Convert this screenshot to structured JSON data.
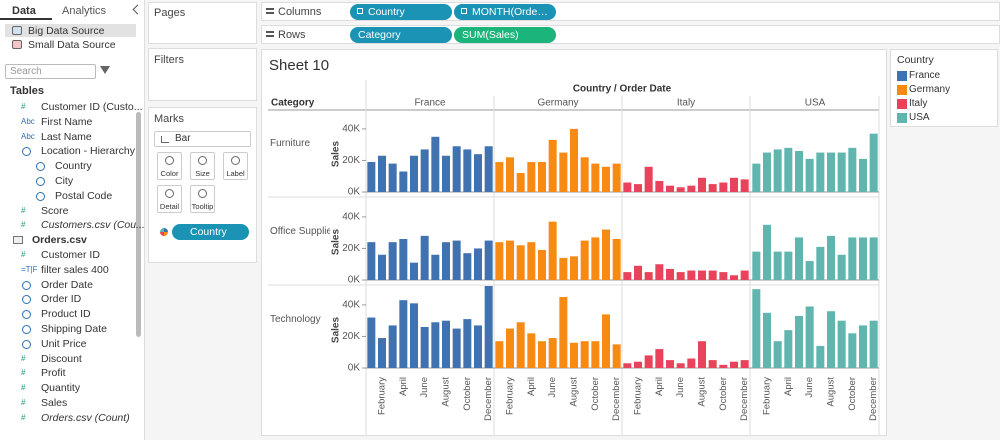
{
  "left_panel": {
    "tabs": [
      "Data",
      "Analytics"
    ],
    "sources": [
      "Big Data Source",
      "Small Data Source"
    ],
    "search": "Search",
    "tables_title": "Tables",
    "fields": [
      {
        "label": "Customer ID (Custo...",
        "icon": "#"
      },
      {
        "label": "First Name",
        "icon": "Abc"
      },
      {
        "label": "Last Name",
        "icon": "Abc"
      },
      {
        "label": "Location - Hierarchy"
      },
      {
        "label": "Country",
        "level": 1
      },
      {
        "label": "City",
        "level": 1
      },
      {
        "label": "Postal Code",
        "level": 1
      },
      {
        "label": "Score",
        "icon": "#"
      },
      {
        "label": "Customers.csv (Cou...",
        "icon": "#",
        "italic": true
      },
      {
        "label": "Orders.csv",
        "bold": true
      },
      {
        "label": "Customer ID",
        "icon": "#"
      },
      {
        "label": "filter sales 400",
        "icon": "=T|F"
      },
      {
        "label": "Order Date"
      },
      {
        "label": "Order ID"
      },
      {
        "label": "Product ID"
      },
      {
        "label": "Shipping Date"
      },
      {
        "label": "Unit Price"
      },
      {
        "label": "Discount",
        "icon": "#"
      },
      {
        "label": "Profit",
        "icon": "#"
      },
      {
        "label": "Quantity",
        "icon": "#"
      },
      {
        "label": "Sales",
        "icon": "#"
      },
      {
        "label": "Orders.csv (Count)",
        "icon": "#",
        "italic": true
      }
    ]
  },
  "cards": {
    "pages": "Pages",
    "filters": "Filters",
    "marks": "Marks",
    "mark_type": "Bar",
    "buttons": [
      "Color",
      "Size",
      "Label",
      "Detail",
      "Tooltip"
    ],
    "color_pill": "Country"
  },
  "shelves": {
    "columns": {
      "label": "Columns",
      "pills": [
        "Country",
        "MONTH(Order Date)"
      ]
    },
    "rows": {
      "label": "Rows",
      "pills": [
        "Category",
        "SUM(Sales)"
      ]
    }
  },
  "legend_title": "Country",
  "chart_data": {
    "type": "bar",
    "title": "Sheet 10",
    "column_title": "Country / Order Date",
    "row_header": "Category",
    "y_label": "Sales",
    "row_categories": [
      "Furniture",
      "Office Supplies",
      "Technology"
    ],
    "categories": [
      null,
      "February",
      null,
      "April",
      null,
      "June",
      null,
      "August",
      null,
      "October",
      null,
      "December"
    ],
    "ylim": [
      0,
      52000
    ],
    "yticks": [
      {
        "value": 0,
        "label": "0K"
      },
      {
        "value": 20000,
        "label": "20K"
      },
      {
        "value": 40000,
        "label": "40K"
      }
    ],
    "series": [
      {
        "name": "France",
        "color": "#3f72af",
        "values": [
          [
            19000,
            23000,
            18000,
            13000,
            23000,
            27000,
            35000,
            23000,
            29000,
            27000,
            24000,
            29000
          ],
          [
            24000,
            16000,
            24000,
            26000,
            11000,
            28000,
            16000,
            24000,
            25000,
            17000,
            20000,
            25000
          ],
          [
            32000,
            19000,
            27000,
            43000,
            41000,
            26000,
            29000,
            30000,
            25000,
            31000,
            27000,
            52000
          ]
        ]
      },
      {
        "name": "Germany",
        "color": "#f88a12",
        "values": [
          [
            19000,
            22000,
            12000,
            19000,
            19000,
            33000,
            25000,
            40000,
            22000,
            18000,
            16000,
            18000
          ],
          [
            24000,
            25000,
            22000,
            24000,
            19000,
            37000,
            14000,
            15000,
            25000,
            27000,
            32000,
            26000
          ],
          [
            17000,
            25000,
            29000,
            22000,
            17000,
            19000,
            45000,
            16000,
            17000,
            17000,
            34000,
            15000
          ]
        ]
      },
      {
        "name": "Italy",
        "color": "#e8435a",
        "values": [
          [
            6000,
            5000,
            16000,
            7000,
            4000,
            3000,
            4000,
            9000,
            5000,
            6000,
            9000,
            8000
          ],
          [
            5000,
            9000,
            5000,
            10000,
            7000,
            5000,
            6000,
            6000,
            6000,
            5000,
            3000,
            6000
          ],
          [
            3000,
            4000,
            8000,
            12000,
            5000,
            3000,
            6000,
            17000,
            5000,
            2000,
            4000,
            5000
          ]
        ]
      },
      {
        "name": "USA",
        "color": "#60b6ae",
        "values": [
          [
            18000,
            25000,
            27000,
            28000,
            26000,
            21000,
            25000,
            25000,
            25000,
            28000,
            21000,
            37000
          ],
          [
            18000,
            35000,
            18000,
            18000,
            27000,
            12000,
            21000,
            28000,
            16000,
            27000,
            27000,
            27000
          ],
          [
            50000,
            35000,
            17000,
            24000,
            33000,
            39000,
            14000,
            36000,
            30000,
            22000,
            27000,
            30000
          ]
        ]
      }
    ]
  }
}
